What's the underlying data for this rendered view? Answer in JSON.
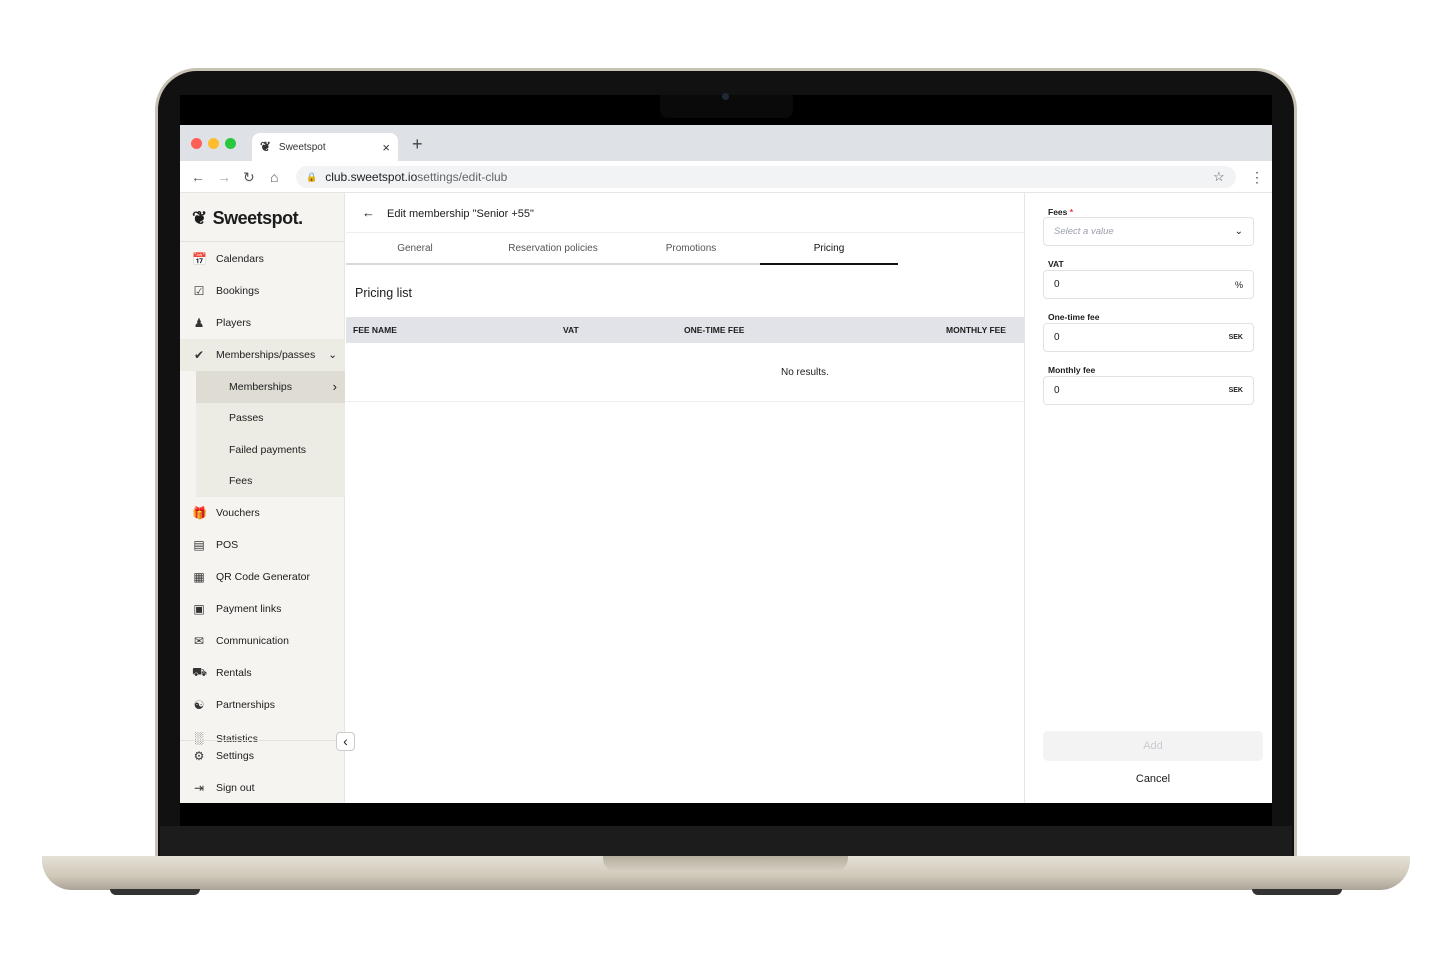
{
  "browser": {
    "tab_title": "Sweetspot",
    "url_host": "club.sweetspot.io",
    "url_path": "settings/edit-club",
    "new_tab": "+",
    "close": "×"
  },
  "app": {
    "logo": "Sweetspot."
  },
  "sidebar": {
    "items": [
      {
        "label": "Calendars",
        "icon": "calendar-icon"
      },
      {
        "label": "Bookings",
        "icon": "calendar-check-icon"
      },
      {
        "label": "Players",
        "icon": "users-icon"
      },
      {
        "label": "Memberships/passes",
        "icon": "check-badge-icon"
      }
    ],
    "sub_items": [
      "Memberships",
      "Passes",
      "Failed payments",
      "Fees"
    ],
    "items2": [
      {
        "label": "Vouchers",
        "icon": "gift-icon"
      },
      {
        "label": "POS",
        "icon": "cash-register-icon"
      },
      {
        "label": "QR Code Generator",
        "icon": "qr-code-icon"
      },
      {
        "label": "Payment links",
        "icon": "payment-link-icon"
      },
      {
        "label": "Communication",
        "icon": "mail-icon"
      },
      {
        "label": "Rentals",
        "icon": "golf-cart-icon"
      },
      {
        "label": "Partnerships",
        "icon": "handshake-icon"
      },
      {
        "label": "Statistics",
        "icon": "bar-chart-icon"
      },
      {
        "label": "Settings",
        "icon": "gear-icon"
      },
      {
        "label": "Sign out",
        "icon": "sign-out-icon"
      }
    ]
  },
  "main": {
    "title": "Edit membership \"Senior +55\"",
    "tabs": [
      "General",
      "Reservation policies",
      "Promotions",
      "Pricing"
    ],
    "active_tab": "Pricing",
    "section_title": "Pricing list",
    "columns": [
      "FEE NAME",
      "VAT",
      "ONE-TIME FEE",
      "MONTHLY FEE"
    ],
    "empty": "No results."
  },
  "panel": {
    "fees_label": "Fees",
    "required": "*",
    "fees_placeholder": "Select a value",
    "vat_label": "VAT",
    "vat_value": "0",
    "vat_suffix": "%",
    "onetime_label": "One-time fee",
    "onetime_value": "0",
    "onetime_suffix": "SEK",
    "monthly_label": "Monthly fee",
    "monthly_value": "0",
    "monthly_suffix": "SEK",
    "add": "Add",
    "cancel": "Cancel"
  }
}
